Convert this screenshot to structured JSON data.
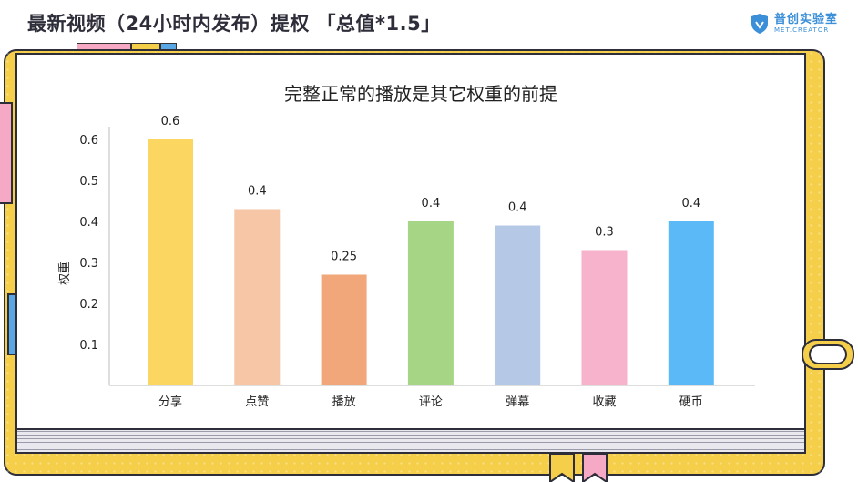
{
  "header": {
    "title": "最新视频（24小时内发布）提权 「总值*1.5」"
  },
  "logo": {
    "name_cn": "普创实验室",
    "name_en": "MET.CREATOR"
  },
  "colors": {
    "notebook": "#f6cf4a",
    "outline": "#2e2e3a",
    "accent_pink": "#f6a9c4",
    "accent_blue": "#5aa7e6"
  },
  "chart_data": {
    "type": "bar",
    "title": "完整正常的播放是其它权重的前提",
    "xlabel": "",
    "ylabel": "权重",
    "ylim": [
      0,
      0.6
    ],
    "yticks": [
      "0.1",
      "0.2",
      "0.3",
      "0.4",
      "0.5",
      "0.6"
    ],
    "categories": [
      "分享",
      "点赞",
      "播放",
      "评论",
      "弹幕",
      "收藏",
      "硬币"
    ],
    "values": [
      0.6,
      0.4,
      0.25,
      0.4,
      0.4,
      0.3,
      0.4
    ],
    "bar_heights": [
      0.6,
      0.43,
      0.27,
      0.4,
      0.39,
      0.33,
      0.4
    ],
    "data_labels": [
      "0.6",
      "0.4",
      "0.25",
      "0.4",
      "0.4",
      "0.3",
      "0.4"
    ],
    "colors": [
      "#fbd661",
      "#f6c6a6",
      "#f2a77a",
      "#a6d585",
      "#b5c9e6",
      "#f7b2cc",
      "#5cb9f7"
    ],
    "grid": false,
    "legend": "none"
  }
}
